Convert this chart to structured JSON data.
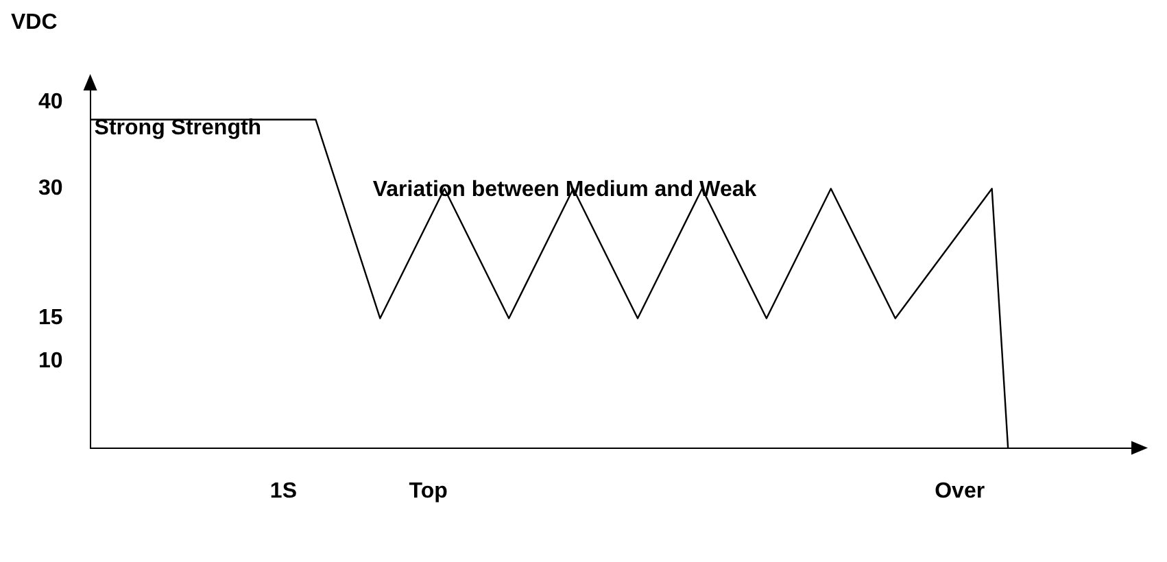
{
  "chart_data": {
    "type": "line",
    "ylabel": "VDC",
    "categories": [
      null,
      null,
      null,
      null,
      null,
      null,
      null,
      null,
      null,
      null,
      null,
      null,
      "1S",
      null,
      null,
      null,
      null,
      null,
      null,
      null,
      null,
      "Top",
      null,
      null,
      null,
      null,
      null,
      null,
      null,
      null,
      null,
      null,
      null,
      null,
      null,
      null,
      null,
      null,
      null,
      null,
      null,
      null,
      null,
      null,
      null,
      null,
      null,
      null,
      null,
      null,
      null,
      null,
      null,
      null,
      "Over",
      null,
      null,
      null,
      null,
      null,
      null,
      null,
      null,
      null,
      null,
      null
    ],
    "series": [
      {
        "color": "#000000",
        "values": [
          38,
          null,
          null,
          null,
          null,
          null,
          null,
          null,
          null,
          null,
          null,
          null,
          null,
          null,
          38,
          null,
          null,
          null,
          15,
          null,
          null,
          null,
          30,
          null,
          null,
          null,
          15,
          null,
          null,
          null,
          30,
          null,
          null,
          null,
          15,
          null,
          null,
          null,
          30,
          null,
          null,
          null,
          15,
          null,
          null,
          null,
          30,
          null,
          null,
          null,
          15,
          null,
          null,
          null,
          null,
          null,
          30,
          0,
          null,
          null,
          null,
          null,
          null,
          null,
          null,
          null
        ]
      }
    ],
    "ylim": [
      0,
      42
    ],
    "yticks": [
      10,
      15,
      30,
      40
    ],
    "annotations": [
      "Strong Strength",
      "Variation between Medium and Weak"
    ],
    "grid": false,
    "legend": false,
    "marker": "none",
    "line_style": "solid"
  }
}
